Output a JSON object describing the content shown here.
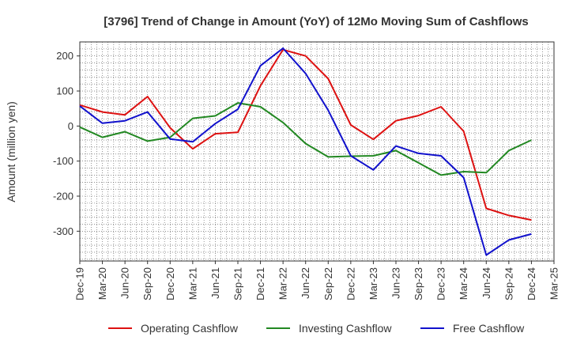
{
  "chart_data": {
    "type": "line",
    "title": "[3796]  Trend of Change in Amount (YoY) of 12Mo Moving Sum of Cashflows",
    "xlabel": "",
    "ylabel": "Amount (million yen)",
    "ylim": [
      -385,
      240
    ],
    "yticks": [
      200,
      100,
      0,
      -100,
      -200,
      -300
    ],
    "grid": true,
    "legend_position": "bottom",
    "categories": [
      "Dec-19",
      "Mar-20",
      "Jun-20",
      "Sep-20",
      "Dec-20",
      "Mar-21",
      "Jun-21",
      "Sep-21",
      "Dec-21",
      "Mar-22",
      "Jun-22",
      "Sep-22",
      "Dec-22",
      "Mar-23",
      "Jun-23",
      "Sep-23",
      "Dec-23",
      "Mar-24",
      "Jun-24",
      "Sep-24",
      "Dec-24",
      "Mar-25"
    ],
    "series": [
      {
        "name": "Operating Cashflow",
        "color": "#dd1111",
        "values": [
          60,
          40,
          32,
          84,
          -5,
          -65,
          -22,
          -18,
          115,
          218,
          200,
          135,
          3,
          -38,
          15,
          30,
          55,
          -15,
          -235,
          -255,
          -268,
          null
        ]
      },
      {
        "name": "Investing Cashflow",
        "color": "#228822",
        "values": [
          -3,
          -32,
          -16,
          -43,
          -32,
          22,
          29,
          66,
          55,
          10,
          -50,
          -88,
          -86,
          -85,
          -70,
          -105,
          -140,
          -130,
          -133,
          -70,
          -40,
          null
        ]
      },
      {
        "name": "Free Cashflow",
        "color": "#1111cc",
        "values": [
          57,
          8,
          15,
          40,
          -37,
          -45,
          7,
          48,
          172,
          222,
          150,
          45,
          -85,
          -125,
          -57,
          -78,
          -85,
          -147,
          -368,
          -325,
          -308,
          null
        ]
      }
    ]
  }
}
